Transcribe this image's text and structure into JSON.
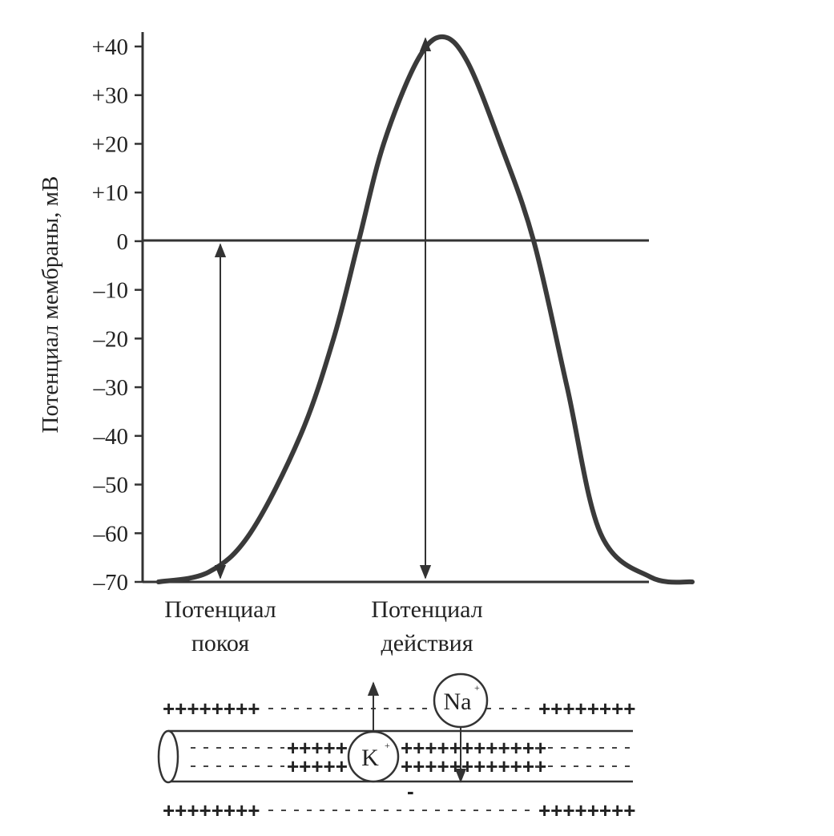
{
  "chart_data": {
    "type": "line",
    "ylabel": "Потенциал мембраны, мВ",
    "xlabel": "",
    "yticks": [
      "+40",
      "+30",
      "+20",
      "+10",
      "0",
      "–10",
      "–20",
      "–30",
      "–40",
      "–50",
      "–60",
      "–70"
    ],
    "yvalues": [
      40,
      30,
      20,
      10,
      0,
      -10,
      -20,
      -30,
      -40,
      -50,
      -60,
      -70
    ],
    "ylim": [
      -70,
      42
    ],
    "baseline": 0,
    "series": [
      {
        "x": [
          0.19,
          0.25,
          0.3,
          0.36,
          0.4,
          0.43,
          0.46,
          0.5,
          0.53,
          0.56,
          0.6,
          0.64,
          0.68,
          0.72,
          0.78,
          0.83
        ],
        "y": [
          -70,
          -68,
          -60,
          -40,
          -20,
          0,
          20,
          37,
          42,
          37,
          20,
          0,
          -30,
          -60,
          -69,
          -70
        ]
      }
    ],
    "grid": false
  },
  "labels": {
    "rest_line1": "Потенциал",
    "rest_line2": "покоя",
    "action_line1": "Потенциал",
    "action_line2": "действия"
  },
  "axon": {
    "outer_top_left": "++++++++",
    "outer_top_right": "++++++++",
    "outer_bottom_left": "++++++++",
    "outer_bottom_right": "++++++++",
    "inner_top": "+++++",
    "inner_bottom": "+++++",
    "inner_top_right": "++++++++++++",
    "inner_bottom_right": "++++++++++++",
    "minus": "-",
    "ion_na": "Na",
    "ion_k": "K",
    "charge_na": "+",
    "charge_k": "+"
  }
}
